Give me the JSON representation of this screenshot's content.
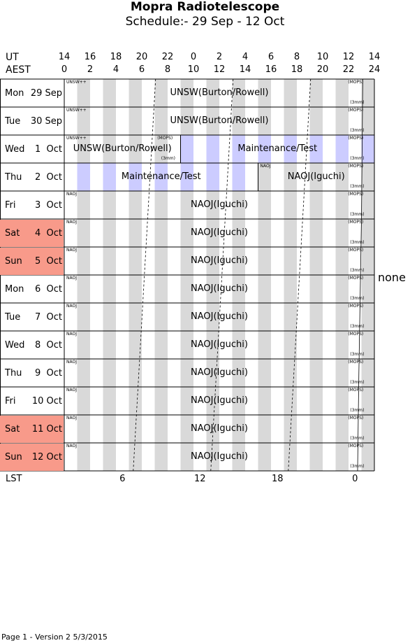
{
  "title": "Mopra Radiotelescope",
  "subtitle": "Schedule:- 29 Sep - 12 Oct",
  "ut_label": "UT",
  "aest_label": "AEST",
  "ut_ticks": [
    "14",
    "16",
    "18",
    "20",
    "22",
    "0",
    "2",
    "4",
    "6",
    "8",
    "10",
    "12",
    "14"
  ],
  "aest_ticks": [
    "0",
    "2",
    "4",
    "6",
    "8",
    "10",
    "12",
    "14",
    "16",
    "18",
    "20",
    "22",
    "24"
  ],
  "days": [
    {
      "name": "Mon",
      "date": "29 Sep",
      "weekend": false
    },
    {
      "name": "Tue",
      "date": "30 Sep",
      "weekend": false
    },
    {
      "name": "Wed",
      "date": "1  Oct",
      "weekend": false
    },
    {
      "name": "Thu",
      "date": "2  Oct",
      "weekend": false
    },
    {
      "name": "Fri",
      "date": "3  Oct",
      "weekend": false
    },
    {
      "name": "Sat",
      "date": "4  Oct",
      "weekend": true
    },
    {
      "name": "Sun",
      "date": "5  Oct",
      "weekend": true
    },
    {
      "name": "Mon",
      "date": "6  Oct",
      "weekend": false
    },
    {
      "name": "Tue",
      "date": "7  Oct",
      "weekend": false
    },
    {
      "name": "Wed",
      "date": "8  Oct",
      "weekend": false
    },
    {
      "name": "Thu",
      "date": "9  Oct",
      "weekend": false
    },
    {
      "name": "Fri",
      "date": "10 Oct",
      "weekend": false
    },
    {
      "name": "Sat",
      "date": "11 Oct",
      "weekend": true
    },
    {
      "name": "Sun",
      "date": "12 Oct",
      "weekend": true
    }
  ],
  "projects": [
    {
      "label": "UNSW(Burton/Rowell)",
      "group": "UNSW++"
    },
    {
      "label": "UNSW(Burton/Rowell)",
      "group": "UNSW++"
    },
    {
      "label": "UNSW(Burton/Rowell)",
      "group": "UNSW++"
    },
    {
      "label": "Maintenance/Test",
      "group": ""
    },
    {
      "label": "NAOJ(Iguchi)",
      "group": "NAOJ"
    },
    {
      "label": "NAOJ(Iguchi)",
      "group": "NAOJ"
    },
    {
      "label": "NAOJ(Iguchi)",
      "group": "NAOJ"
    },
    {
      "label": "NAOJ(Iguchi)",
      "group": "NAOJ"
    },
    {
      "label": "NAOJ(Iguchi)",
      "group": "NAOJ"
    },
    {
      "label": "NAOJ(Iguchi)",
      "group": "NAOJ"
    },
    {
      "label": "NAOJ(Iguchi)",
      "group": "NAOJ"
    },
    {
      "label": "NAOJ(Iguchi)",
      "group": "NAOJ"
    },
    {
      "label": "NAOJ(Iguchi)",
      "group": "NAOJ"
    },
    {
      "label": "NAOJ(Iguchi)",
      "group": "NAOJ"
    },
    {
      "label": "NAOJ(Iguchi)",
      "group": "NAOJ"
    },
    {
      "label": "NAOJ(Iguchi)",
      "group": "NAOJ"
    },
    {
      "label": "Maintenance/Test",
      "group": ""
    },
    {
      "label": "Maintenance/Test",
      "group": ""
    }
  ],
  "mops_tag": "(MOPS)",
  "mm3_tag": "(3mm)",
  "unsw_tag": "UNSW++",
  "naoj_tag": "NAOJ",
  "right_note": "none",
  "lst_label": "LST",
  "lst_ticks": [
    "6",
    "12",
    "18",
    "0"
  ],
  "footer": "Page 1 - Version 2  5/3/2015",
  "colors": {
    "weekend": "#f89a8a",
    "stripe": "#d9d9d9",
    "maintenance": "#ccccff"
  }
}
